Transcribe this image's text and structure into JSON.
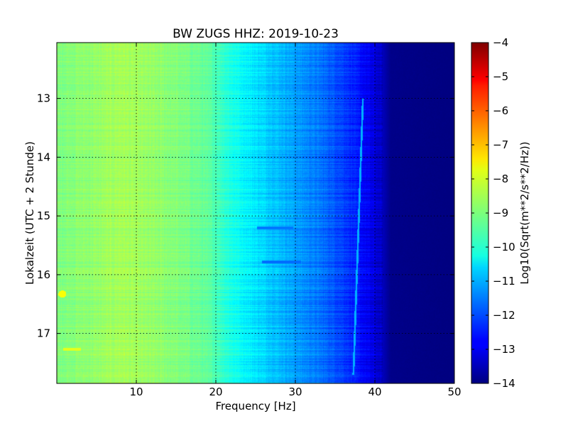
{
  "chart_data": {
    "type": "heatmap",
    "title": "BW ZUGS HHZ: 2019-10-23",
    "xlabel": "Frequency [Hz]",
    "ylabel": "Lokalzeit (UTC + 2 Stunde)",
    "xlim": [
      0,
      50
    ],
    "ylim_hours": [
      12.05,
      17.85
    ],
    "y_direction": "down",
    "xticks": [
      10,
      20,
      30,
      40,
      50
    ],
    "xtick_labels": [
      "10",
      "20",
      "30",
      "40",
      "50"
    ],
    "yticks": [
      13,
      14,
      15,
      16,
      17
    ],
    "ytick_labels": [
      "13",
      "14",
      "15",
      "16",
      "17"
    ],
    "grid": true,
    "colormap": "jet",
    "colorbar": {
      "label": "Log10(Sqrt(m**2/s**2/Hz))",
      "range": [
        -14,
        -4
      ],
      "ticks": [
        -4,
        -5,
        -6,
        -7,
        -8,
        -9,
        -10,
        -11,
        -12,
        -13,
        -14
      ],
      "tick_labels": [
        "−4",
        "−5",
        "−6",
        "−7",
        "−8",
        "−9",
        "−10",
        "−11",
        "−12",
        "−13",
        "−14"
      ]
    },
    "frequency_profile": {
      "frequency_hz": [
        0,
        2,
        5,
        8,
        10,
        14,
        18,
        20,
        22,
        25,
        28,
        30,
        33,
        36,
        38,
        40,
        41,
        42,
        50
      ],
      "log10_psd": [
        -9.0,
        -8.9,
        -8.8,
        -8.6,
        -8.7,
        -8.9,
        -9.2,
        -9.5,
        -10.0,
        -10.5,
        -10.9,
        -11.2,
        -11.6,
        -12.1,
        -12.6,
        -13.1,
        -13.4,
        -13.9,
        -14.0
      ]
    },
    "features": [
      {
        "kind": "spot",
        "frequency_hz": 0.7,
        "time_hour": 16.33,
        "log10_psd": -7.8
      },
      {
        "kind": "line",
        "frequency_hz": [
          0.8,
          3.0
        ],
        "time_hour": 17.27,
        "log10_psd": -8.0
      },
      {
        "kind": "line",
        "frequency_hz": [
          25.2,
          29.7
        ],
        "time_hour": 15.2,
        "log10_psd": -11.6
      },
      {
        "kind": "line",
        "frequency_hz": [
          25.8,
          30.7
        ],
        "time_hour": 15.78,
        "log10_psd": -11.7
      },
      {
        "kind": "drifting-line",
        "frequency_hz": [
          38.5,
          37.3
        ],
        "time_hour": [
          13.0,
          17.7
        ],
        "log10_psd": -11.0
      }
    ]
  }
}
